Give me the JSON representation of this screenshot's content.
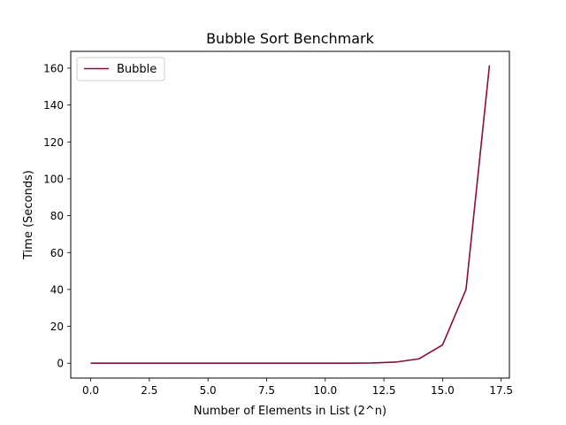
{
  "chart_data": {
    "type": "line",
    "title": "Bubble Sort Benchmark",
    "xlabel": "Number of Elements in List (2^n)",
    "ylabel": "Time (Seconds)",
    "xlim": [
      -0.85,
      17.85
    ],
    "ylim": [
      -8.05,
      169.1
    ],
    "xticks": [
      0.0,
      2.5,
      5.0,
      7.5,
      10.0,
      12.5,
      15.0,
      17.5
    ],
    "xtick_labels": [
      "0.0",
      "2.5",
      "5.0",
      "7.5",
      "10.0",
      "12.5",
      "15.0",
      "17.5"
    ],
    "yticks": [
      0,
      20,
      40,
      60,
      80,
      100,
      120,
      140,
      160
    ],
    "ytick_labels": [
      "0",
      "20",
      "40",
      "60",
      "80",
      "100",
      "120",
      "140",
      "160"
    ],
    "grid": false,
    "legend_position": "upper-left",
    "series": [
      {
        "name": "Bubble",
        "color": "#8c0a3c",
        "x": [
          0,
          1,
          2,
          3,
          4,
          5,
          6,
          7,
          8,
          9,
          10,
          11,
          12,
          13,
          14,
          15,
          16,
          17
        ],
        "y": [
          0.0,
          0.0,
          0.0,
          0.0,
          0.0,
          0.0,
          0.0,
          0.0,
          0.0,
          0.0,
          0.01,
          0.04,
          0.15,
          0.6,
          2.4,
          9.9,
          40.0,
          161.5
        ]
      }
    ]
  }
}
